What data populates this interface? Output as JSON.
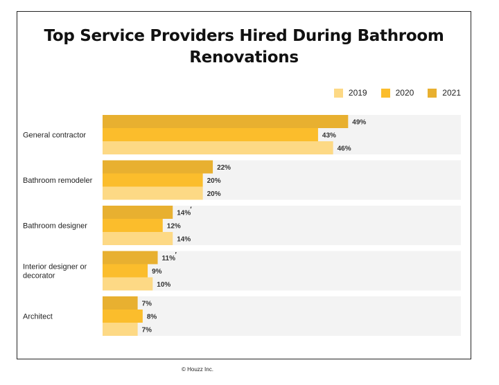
{
  "chart_data": {
    "type": "bar",
    "orientation": "horizontal",
    "title_lines": [
      "Top Service Providers Hired During Bathroom",
      "Renovations"
    ],
    "categories": [
      "General contractor",
      "Bathroom remodeler",
      "Bathroom designer",
      "Interior designer or decorator",
      "Architect"
    ],
    "category_label_lines": [
      [
        "General contractor"
      ],
      [
        "Bathroom remodeler"
      ],
      [
        "Bathroom designer"
      ],
      [
        "Interior designer or",
        "decorator"
      ],
      [
        "Architect"
      ]
    ],
    "series": [
      {
        "name": "2021",
        "color": "#E8B030",
        "values": [
          49,
          22,
          14,
          11,
          7
        ],
        "labels": [
          "49%",
          "22%",
          "14%",
          "11%",
          "7%"
        ]
      },
      {
        "name": "2020",
        "color": "#FBBD2C",
        "values": [
          43,
          20,
          12,
          9,
          8
        ],
        "labels": [
          "43%",
          "20%",
          "12%",
          "9%",
          "8%"
        ]
      },
      {
        "name": "2019",
        "color": "#FDD985",
        "values": [
          46,
          20,
          14,
          10,
          7
        ],
        "labels": [
          "46%",
          "20%",
          "14%",
          "10%",
          "7%"
        ]
      }
    ],
    "significance_marks": [
      null,
      null,
      "′",
      "′",
      null
    ],
    "legend_order": [
      "2019",
      "2020",
      "2021"
    ],
    "legend_position": "top-right",
    "grid": false,
    "xlim": [
      0,
      71.5
    ]
  },
  "footer": {
    "copyright": "© Houzz Inc."
  },
  "colors": {
    "background_band": "#F3F3F3"
  }
}
